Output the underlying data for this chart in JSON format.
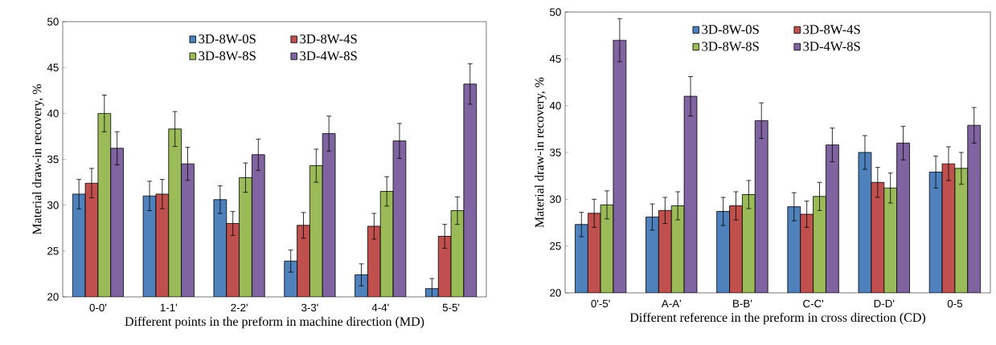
{
  "chart_data": [
    {
      "type": "bar",
      "xlabel": "Different points in the preform in machine direction (MD)",
      "ylabel": "Material draw-in recovery, %",
      "categories": [
        "0-0'",
        "1-1'",
        "2-2'",
        "3-3'",
        "4-4'",
        "5-5'"
      ],
      "ylim": [
        20,
        50
      ],
      "yticks": [
        20,
        25,
        30,
        35,
        40,
        45,
        50
      ],
      "grid": false,
      "legend": "top",
      "series": [
        {
          "name": "3D-8W-0S",
          "color": "#4f81bd",
          "values": [
            31.2,
            31.0,
            30.6,
            23.9,
            22.4,
            20.9
          ],
          "errors": [
            1.6,
            1.6,
            1.5,
            1.2,
            1.2,
            1.1
          ]
        },
        {
          "name": "3D-8W-4S",
          "color": "#c0504d",
          "values": [
            32.4,
            31.2,
            28.0,
            27.8,
            27.7,
            26.6
          ],
          "errors": [
            1.6,
            1.6,
            1.3,
            1.4,
            1.4,
            1.3
          ]
        },
        {
          "name": "3D-8W-8S",
          "color": "#9bbb59",
          "values": [
            40.0,
            38.3,
            33.0,
            34.3,
            31.5,
            29.4
          ],
          "errors": [
            2.0,
            1.9,
            1.6,
            1.8,
            1.6,
            1.5
          ]
        },
        {
          "name": "3D-4W-8S",
          "color": "#8064a2",
          "values": [
            36.2,
            34.5,
            35.5,
            37.8,
            37.0,
            43.2
          ],
          "errors": [
            1.8,
            1.8,
            1.7,
            1.9,
            1.9,
            2.2
          ]
        }
      ]
    },
    {
      "type": "bar",
      "xlabel": "Different reference in the preform in cross direction (CD)",
      "ylabel": "Material draw-in recovery, %",
      "categories": [
        "0'-5'",
        "A-A'",
        "B-B'",
        "C-C'",
        "D-D'",
        "0-5"
      ],
      "ylim": [
        20,
        50
      ],
      "yticks": [
        20,
        25,
        30,
        35,
        40,
        45,
        50
      ],
      "grid": false,
      "legend": "top",
      "series": [
        {
          "name": "3D-8W-0S",
          "color": "#4f81bd",
          "values": [
            27.3,
            28.1,
            28.7,
            29.2,
            35.0,
            32.9
          ],
          "errors": [
            1.3,
            1.4,
            1.5,
            1.5,
            1.8,
            1.7
          ]
        },
        {
          "name": "3D-8W-4S",
          "color": "#c0504d",
          "values": [
            28.5,
            28.8,
            29.3,
            28.4,
            31.8,
            33.8
          ],
          "errors": [
            1.5,
            1.4,
            1.5,
            1.4,
            1.6,
            1.8
          ]
        },
        {
          "name": "3D-8W-8S",
          "color": "#9bbb59",
          "values": [
            29.4,
            29.3,
            30.5,
            30.3,
            31.2,
            33.3
          ],
          "errors": [
            1.5,
            1.5,
            1.5,
            1.5,
            1.6,
            1.7
          ]
        },
        {
          "name": "3D-4W-8S",
          "color": "#8064a2",
          "values": [
            47.0,
            41.0,
            38.4,
            35.8,
            36.0,
            37.9
          ],
          "errors": [
            2.3,
            2.1,
            1.9,
            1.8,
            1.8,
            1.9
          ]
        }
      ]
    }
  ]
}
